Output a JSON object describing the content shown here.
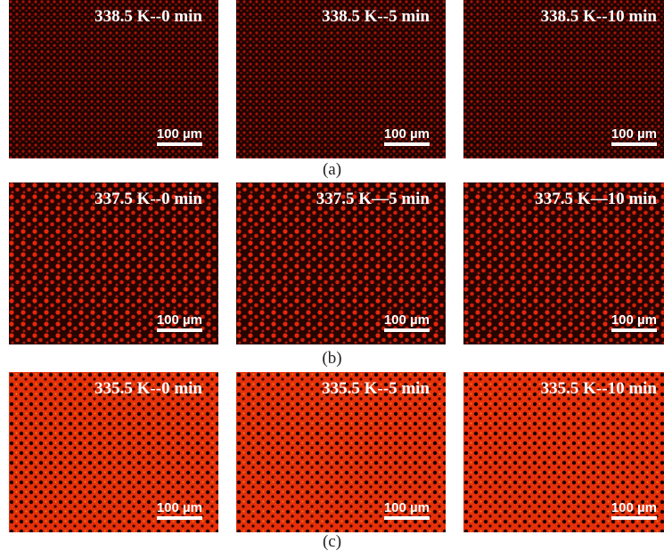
{
  "panels": [
    {
      "label": "(a)",
      "images": [
        {
          "title": "338.5 K--0 min",
          "scale": "100 µm"
        },
        {
          "title": "338.5 K--5 min",
          "scale": "100 µm"
        },
        {
          "title": "338.5 K--10 min",
          "scale": "100 µm"
        }
      ]
    },
    {
      "label": "(b)",
      "images": [
        {
          "title": "337.5 K--0 min",
          "scale": "100 µm"
        },
        {
          "title": "337.5 K—5 min",
          "scale": "100 µm"
        },
        {
          "title": "337.5 K—10 min",
          "scale": "100 µm"
        }
      ]
    },
    {
      "label": "(c)",
      "images": [
        {
          "title": "335.5 K--0 min",
          "scale": "100 µm"
        },
        {
          "title": "335.5 K--5 min",
          "scale": "100 µm"
        },
        {
          "title": "335.5 K--10 min",
          "scale": "100 µm"
        }
      ]
    }
  ]
}
